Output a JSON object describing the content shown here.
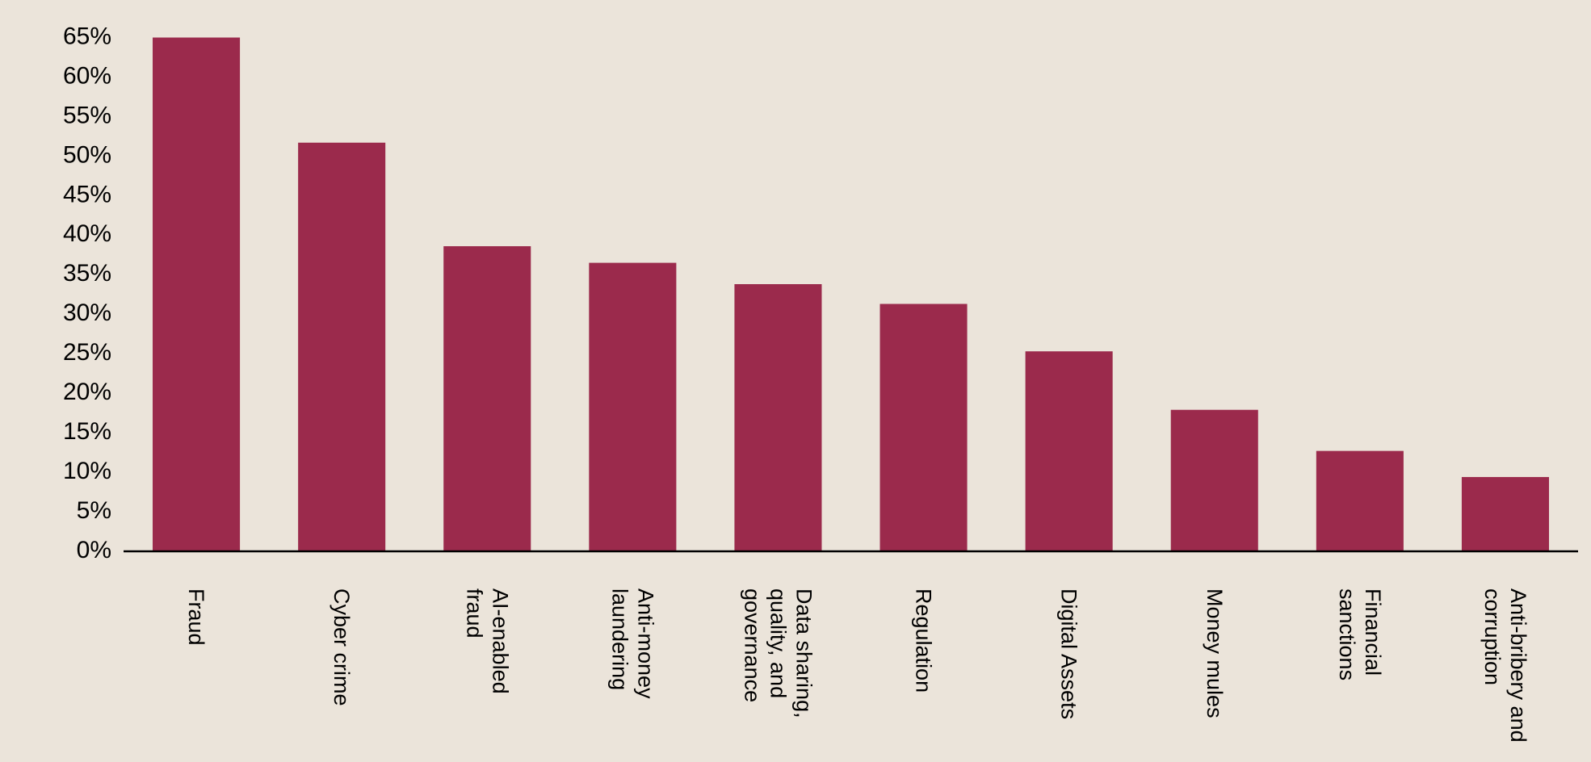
{
  "chart_data": {
    "type": "bar",
    "categories": [
      "Fraud",
      "Cyber crime",
      "AI-enabled fraud",
      "Anti-money laundering",
      "Data sharing, quality, and governance",
      "Regulation",
      "Digital Assets",
      "Money mules",
      "Financial sanctions",
      "Anti-bribery and corruption"
    ],
    "values": [
      65,
      51.7,
      38.6,
      36.5,
      33.8,
      31.3,
      25.3,
      17.9,
      12.7,
      9.4
    ],
    "color": "#9b2a4c",
    "ylim": [
      0,
      65
    ],
    "yticks": [
      {
        "value": 0,
        "label": "0%"
      },
      {
        "value": 5,
        "label": "5%"
      },
      {
        "value": 10,
        "label": "10%"
      },
      {
        "value": 15,
        "label": "15%"
      },
      {
        "value": 20,
        "label": "20%"
      },
      {
        "value": 25,
        "label": "25%"
      },
      {
        "value": 30,
        "label": "30%"
      },
      {
        "value": 35,
        "label": "35%"
      },
      {
        "value": 40,
        "label": "40%"
      },
      {
        "value": 45,
        "label": "45%"
      },
      {
        "value": 50,
        "label": "50%"
      },
      {
        "value": 55,
        "label": "55%"
      },
      {
        "value": 60,
        "label": "60%"
      },
      {
        "value": 65,
        "label": "65%"
      }
    ],
    "grid": false
  }
}
